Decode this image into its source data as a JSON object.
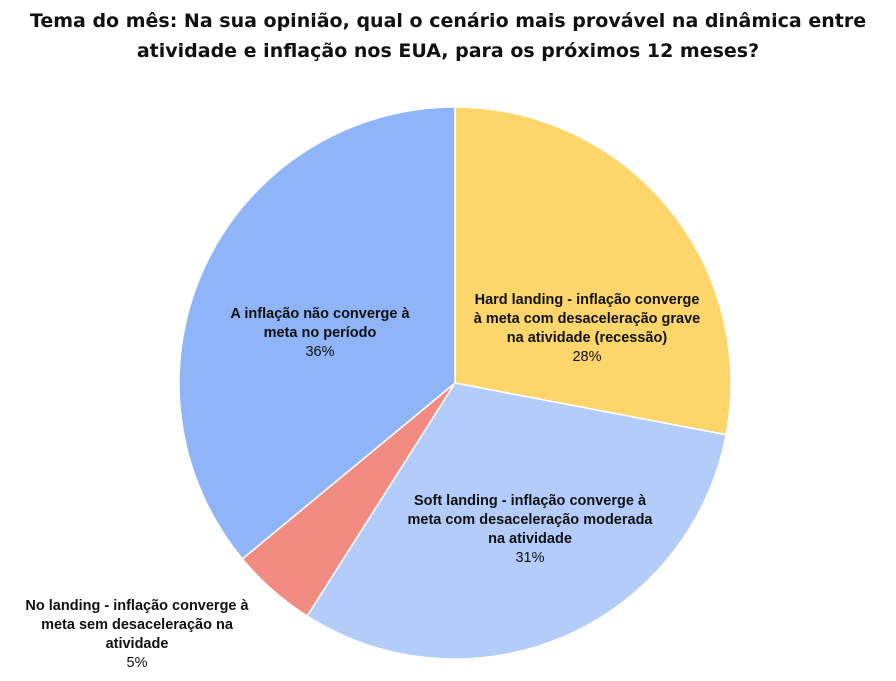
{
  "chart_data": {
    "type": "pie",
    "title_lines": [
      "Tema do mês: Na sua opinião, qual o cenário mais provável na dinâmica entre",
      "atividade e inflação nos EUA, para os próximos 12 meses?"
    ],
    "slices": [
      {
        "label_lines": [
          "Hard landing - inflação converge",
          "à meta com desaceleração grave",
          "na atividade (recessão)"
        ],
        "value": 28,
        "value_label": "28%",
        "color": "#fcd56b"
      },
      {
        "label_lines": [
          "Soft landing - inflação converge à",
          "meta com desaceleração moderada",
          "na atividade"
        ],
        "value": 31,
        "value_label": "31%",
        "color": "#b3ccfa"
      },
      {
        "label_lines": [
          "No landing - inflação converge à",
          "meta sem desaceleração na",
          "atividade"
        ],
        "value": 5,
        "value_label": "5%",
        "color": "#f28b82"
      },
      {
        "label_lines": [
          "A inflação não converge à",
          "meta no período"
        ],
        "value": 36,
        "value_label": "36%",
        "color": "#8fb4f8"
      }
    ],
    "start_angle": "12 o'clock",
    "direction": "clockwise",
    "legend": "none"
  }
}
